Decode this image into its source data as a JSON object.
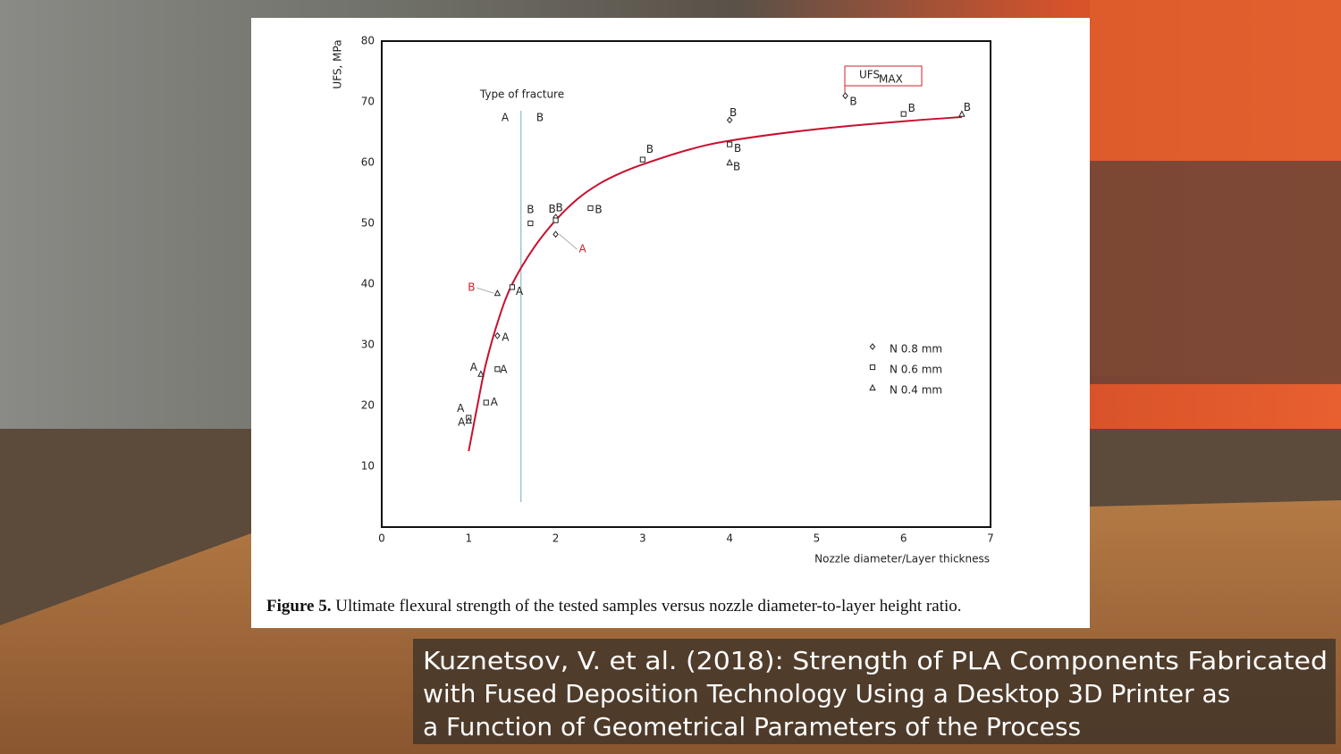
{
  "chart_data": {
    "type": "scatter",
    "x_label": "Nozzle diameter/Layer thickness",
    "y_label": "UFS, MPa",
    "xlim": [
      0,
      7
    ],
    "ylim": [
      0,
      80
    ],
    "xticks": [
      0,
      1,
      2,
      3,
      4,
      5,
      6,
      7
    ],
    "yticks": [
      10,
      20,
      30,
      40,
      50,
      60,
      70,
      80
    ],
    "annotation": "Type of fracture",
    "fracture_regions": [
      "A",
      "B"
    ],
    "fracture_boundary": 1.6,
    "max_label": {
      "text": "UFS",
      "subscript": "MAX"
    },
    "series": [
      {
        "name": "N 0.8 mm",
        "marker": "diamond",
        "color": "#222222",
        "x": [
          1.33,
          2.0,
          2.0,
          4.0,
          5.33
        ],
        "values": [
          31.5,
          48.2,
          51,
          67,
          71
        ],
        "point_labels": [
          "A",
          "A",
          "B",
          "B",
          "B"
        ],
        "label_colors": [
          "#222222",
          "#d0202a",
          "#222222",
          "#222222",
          "#222222"
        ]
      },
      {
        "name": "N 0.6 mm",
        "marker": "square",
        "color": "#222222",
        "x": [
          1.0,
          1.2,
          1.33,
          1.5,
          1.71,
          2.0,
          2.4,
          3.0,
          4.0,
          6.0
        ],
        "values": [
          18,
          20.5,
          26,
          39.5,
          50,
          50.5,
          52.5,
          60.5,
          63,
          68
        ],
        "point_labels": [
          "A",
          "A",
          "A",
          "A",
          "B",
          "B",
          "B",
          "B",
          "B",
          "B"
        ],
        "label_colors": [
          "#222222",
          "#222222",
          "#222222",
          "#222222",
          "#222222",
          "#222222",
          "#222222",
          "#222222",
          "#222222",
          "#222222"
        ]
      },
      {
        "name": "N 0.4 mm",
        "marker": "triangle",
        "color": "#222222",
        "x": [
          1.0,
          1.14,
          1.33,
          4.0,
          6.67
        ],
        "values": [
          17.5,
          25.2,
          38.5,
          60,
          68
        ],
        "point_labels": [
          "A",
          "A",
          "B",
          "B",
          "B"
        ],
        "label_colors": [
          "#222222",
          "#222222",
          "#d0202a",
          "#222222",
          "#222222"
        ]
      }
    ],
    "fit": {
      "color": "#c8102e",
      "x": [
        1.0,
        1.1,
        1.2,
        1.35,
        1.5,
        1.75,
        2.0,
        2.25,
        2.5,
        2.75,
        3.0,
        3.5,
        4.0,
        5.0,
        6.0,
        6.67
      ],
      "values": [
        12.5,
        20,
        27,
        34.5,
        40,
        46,
        50.5,
        54,
        56.5,
        58.3,
        59.7,
        62,
        63.6,
        65.5,
        66.8,
        67.5
      ]
    }
  },
  "caption": {
    "label": "Figure 5.",
    "text": "Ultimate flexural strength of the tested samples versus nozzle diameter-to-layer height ratio."
  },
  "citation": [
    "Kuznetsov, V. et al. (2018): Strength of PLA Components Fabricated",
    "with Fused Deposition Technology Using a Desktop 3D Printer as",
    "a Function of Geometrical Parameters of the Process"
  ]
}
